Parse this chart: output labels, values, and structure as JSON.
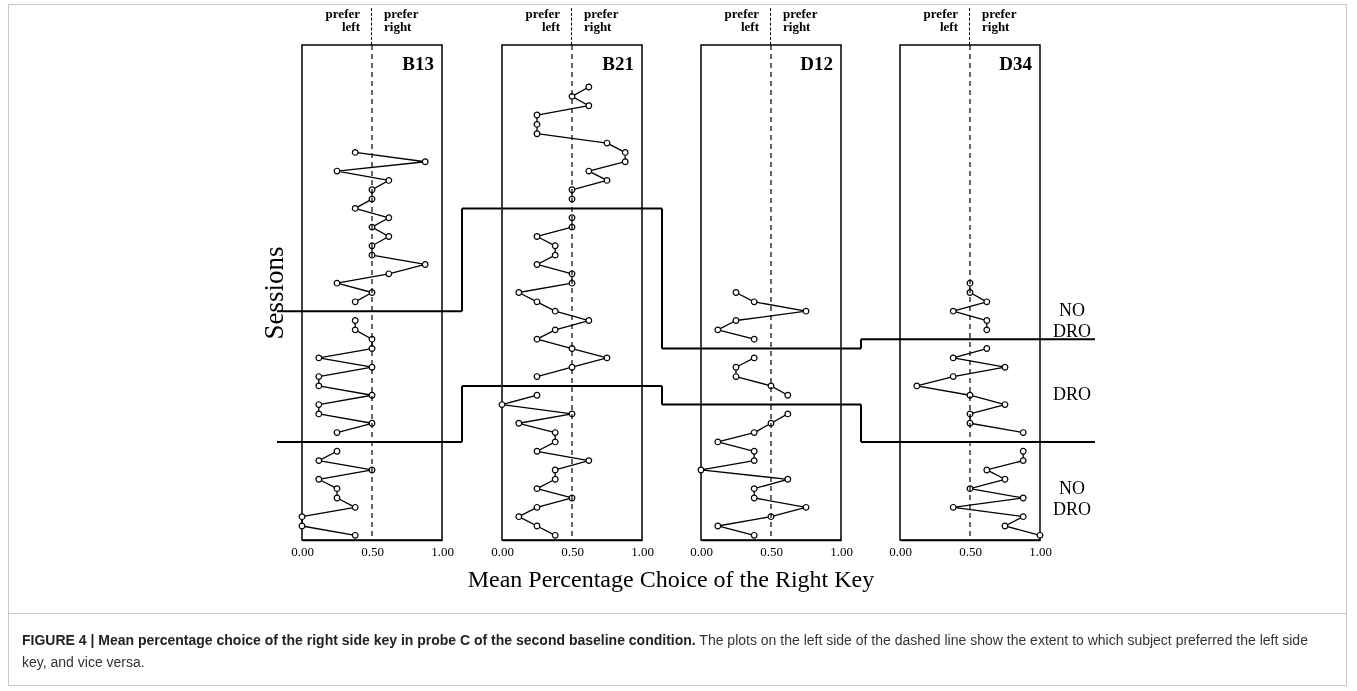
{
  "chart_data": [
    {
      "type": "line",
      "orientation": "horizontal",
      "title": "B13",
      "ylabel": "Sessions",
      "xlabel": "Mean Percentage Choice of the Right Key",
      "annotations": [
        "prefer left",
        "prefer right",
        "FIGURE 4 | Mean percentage choice of the right side key in probe C of the second baseline condition.",
        "The plots on the left side of the dashed line show the extent to which subject preferred the left side key, and vice versa."
      ],
      "categories": [
        null,
        null,
        null,
        null,
        null,
        null,
        null,
        null,
        null,
        null,
        null,
        null,
        null,
        null,
        null,
        null,
        null,
        null,
        null,
        null,
        null,
        null,
        null,
        null,
        null,
        null,
        null,
        null,
        null,
        null,
        null,
        null,
        null,
        null,
        null,
        null,
        null,
        null,
        null,
        null,
        null,
        null,
        null,
        null,
        null,
        null,
        null,
        null,
        null,
        null,
        null,
        null,
        null
      ],
      "series": [
        {
          "color": "#000000",
          "values": [
            null,
            null,
            null,
            null,
            null,
            null,
            null,
            null,
            null,
            null,
            null,
            0.38,
            0.88,
            0.25,
            0.62,
            0.5,
            0.5,
            0.38,
            0.62,
            0.5,
            0.62,
            0.5,
            0.5,
            0.88,
            0.62,
            0.25,
            0.5,
            0.38,
            null,
            0.38,
            0.38,
            0.5,
            0.5,
            0.12,
            0.5,
            0.12,
            0.12,
            0.5,
            0.12,
            0.12,
            0.5,
            0.25,
            null,
            0.25,
            0.12,
            0.5,
            0.12,
            0.25,
            0.25,
            0.38,
            0,
            0,
            0.38
          ]
        }
      ],
      "xlim": [
        0,
        1
      ],
      "xticks": [
        {
          "value": 0,
          "label": "0.00"
        },
        {
          "value": 0.5,
          "label": "0.50"
        },
        {
          "value": 1,
          "label": "1.00"
        }
      ],
      "ref_lines": [
        {
          "axis": "x",
          "value": 0.5,
          "line_style": "dashed"
        }
      ],
      "marker": "circle",
      "tick_labels": "x",
      "grid": false
    },
    {
      "type": "line",
      "orientation": "horizontal",
      "title": "B21",
      "annotations": [
        "prefer left",
        "prefer right"
      ],
      "categories": [
        null,
        null,
        null,
        null,
        null,
        null,
        null,
        null,
        null,
        null,
        null,
        null,
        null,
        null,
        null,
        null,
        null,
        null,
        null,
        null,
        null,
        null,
        null,
        null,
        null,
        null,
        null,
        null,
        null,
        null,
        null,
        null,
        null,
        null,
        null,
        null,
        null,
        null,
        null,
        null,
        null,
        null,
        null,
        null,
        null,
        null,
        null,
        null,
        null,
        null,
        null,
        null,
        null
      ],
      "series": [
        {
          "color": "#000000",
          "values": [
            null,
            null,
            null,
            null,
            0.62,
            0.5,
            0.62,
            0.25,
            0.25,
            0.25,
            0.75,
            0.88,
            0.88,
            0.62,
            0.75,
            0.5,
            0.5,
            null,
            0.5,
            0.5,
            0.25,
            0.38,
            0.38,
            0.25,
            0.5,
            0.5,
            0.12,
            0.25,
            0.38,
            0.62,
            0.38,
            0.25,
            0.5,
            0.75,
            0.5,
            0.25,
            null,
            0.25,
            0,
            0.5,
            0.12,
            0.38,
            0.38,
            0.25,
            0.62,
            0.38,
            0.38,
            0.25,
            0.5,
            0.25,
            0.12,
            0.25,
            0.38
          ]
        }
      ],
      "xlim": [
        0,
        1
      ],
      "xticks": [
        {
          "value": 0,
          "label": "0.00"
        },
        {
          "value": 0.5,
          "label": "0.50"
        },
        {
          "value": 1,
          "label": "1.00"
        }
      ],
      "ref_lines": [
        {
          "axis": "x",
          "value": 0.5,
          "line_style": "dashed"
        }
      ],
      "marker": "circle",
      "tick_labels": "x",
      "grid": false
    },
    {
      "type": "line",
      "orientation": "horizontal",
      "title": "D12",
      "annotations": [
        "prefer left",
        "prefer right"
      ],
      "categories": [
        null,
        null,
        null,
        null,
        null,
        null,
        null,
        null,
        null,
        null,
        null,
        null,
        null,
        null,
        null,
        null,
        null,
        null,
        null,
        null,
        null,
        null,
        null,
        null,
        null,
        null,
        null,
        null,
        null,
        null,
        null,
        null,
        null,
        null,
        null,
        null,
        null,
        null,
        null,
        null,
        null,
        null,
        null,
        null,
        null,
        null,
        null,
        null,
        null,
        null,
        null,
        null,
        null
      ],
      "series": [
        {
          "color": "#000000",
          "values": [
            null,
            null,
            null,
            null,
            null,
            null,
            null,
            null,
            null,
            null,
            null,
            null,
            null,
            null,
            null,
            null,
            null,
            null,
            null,
            null,
            null,
            null,
            null,
            null,
            null,
            null,
            0.25,
            0.38,
            0.75,
            0.25,
            0.12,
            0.38,
            null,
            0.38,
            0.25,
            0.25,
            0.5,
            0.62,
            null,
            0.62,
            0.5,
            0.38,
            0.12,
            0.38,
            0.38,
            0,
            0.62,
            0.38,
            0.38,
            0.75,
            0.5,
            0.12,
            0.38
          ]
        }
      ],
      "xlim": [
        0,
        1
      ],
      "xticks": [
        {
          "value": 0,
          "label": "0.00"
        },
        {
          "value": 0.5,
          "label": "0.50"
        },
        {
          "value": 1,
          "label": "1.00"
        }
      ],
      "ref_lines": [
        {
          "axis": "x",
          "value": 0.5,
          "line_style": "dashed"
        }
      ],
      "marker": "circle",
      "tick_labels": "x",
      "grid": false
    },
    {
      "type": "line",
      "orientation": "horizontal",
      "title": "D34",
      "annotations": [
        "prefer left",
        "prefer right",
        "NO DRO",
        "DRO",
        "NO DRO"
      ],
      "categories": [
        null,
        null,
        null,
        null,
        null,
        null,
        null,
        null,
        null,
        null,
        null,
        null,
        null,
        null,
        null,
        null,
        null,
        null,
        null,
        null,
        null,
        null,
        null,
        null,
        null,
        null,
        null,
        null,
        null,
        null,
        null,
        null,
        null,
        null,
        null,
        null,
        null,
        null,
        null,
        null,
        null,
        null,
        null,
        null,
        null,
        null,
        null,
        null,
        null,
        null,
        null,
        null,
        null
      ],
      "series": [
        {
          "color": "#000000",
          "values": [
            null,
            null,
            null,
            null,
            null,
            null,
            null,
            null,
            null,
            null,
            null,
            null,
            null,
            null,
            null,
            null,
            null,
            null,
            null,
            null,
            null,
            null,
            null,
            null,
            null,
            0.5,
            0.5,
            0.62,
            0.38,
            0.62,
            0.62,
            null,
            0.62,
            0.38,
            0.75,
            0.38,
            0.12,
            0.5,
            0.75,
            0.5,
            0.5,
            0.88,
            null,
            0.88,
            0.88,
            0.62,
            0.75,
            0.5,
            0.88,
            0.38,
            0.88,
            0.75,
            1
          ]
        }
      ],
      "xlim": [
        0,
        1
      ],
      "xticks": [
        {
          "value": 0,
          "label": "0.00"
        },
        {
          "value": 0.5,
          "label": "0.50"
        },
        {
          "value": 1,
          "label": "1.00"
        }
      ],
      "ref_lines": [
        {
          "axis": "x",
          "value": 0.5,
          "line_style": "dashed"
        }
      ],
      "marker": "circle",
      "tick_labels": "x",
      "grid": false
    }
  ]
}
